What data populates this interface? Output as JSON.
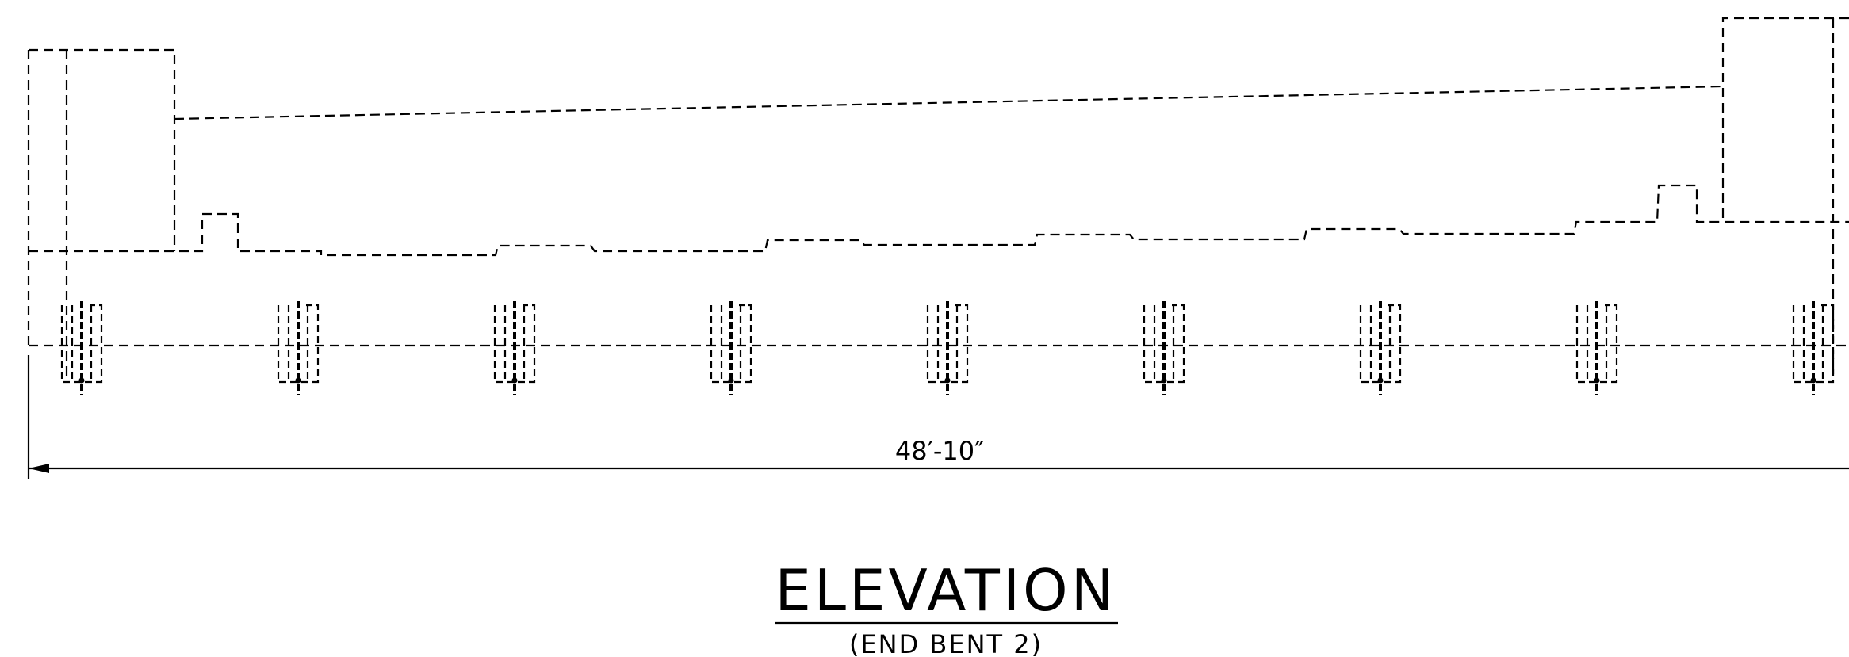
{
  "drawing": {
    "dimension_label": "48′-10″",
    "title": "ELEVATION",
    "subtitle": "(END BENT 2)"
  }
}
